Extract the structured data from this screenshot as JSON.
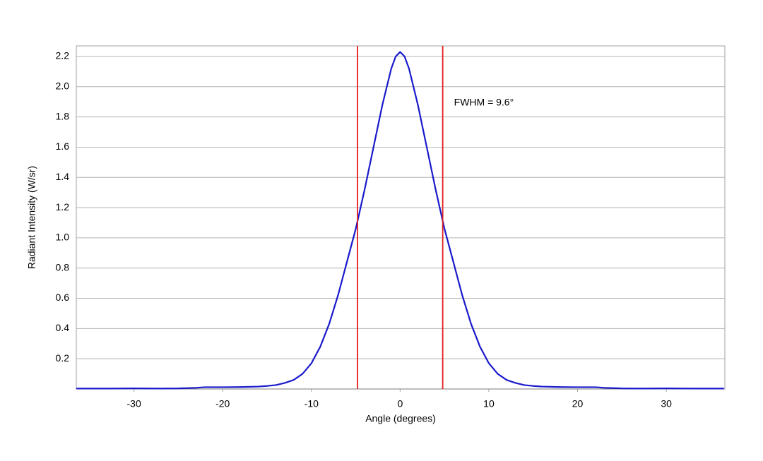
{
  "chart_data": {
    "type": "line",
    "xlabel": "Angle (degrees)",
    "ylabel": "Radiant Intensity (W/sr)",
    "x": [
      -36.5,
      -33,
      -30,
      -27,
      -25,
      -23,
      -22,
      -20,
      -18,
      -16,
      -15,
      -14,
      -13,
      -12,
      -11,
      -10,
      -9,
      -8,
      -7,
      -6,
      -5,
      -4,
      -3,
      -2,
      -1,
      -0.5,
      0,
      0.5,
      1,
      2,
      3,
      4,
      5,
      6,
      7,
      8,
      9,
      10,
      11,
      12,
      13,
      14,
      15,
      16,
      18,
      20,
      22,
      23,
      25,
      27,
      30,
      33,
      36.5
    ],
    "series": [
      {
        "name": "Radiant Intensity",
        "color": "#1a1acc",
        "values": [
          0.003,
          0.003,
          0.004,
          0.003,
          0.004,
          0.008,
          0.012,
          0.012,
          0.013,
          0.016,
          0.02,
          0.026,
          0.04,
          0.06,
          0.1,
          0.17,
          0.28,
          0.43,
          0.62,
          0.84,
          1.06,
          1.32,
          1.6,
          1.88,
          2.12,
          2.2,
          2.23,
          2.2,
          2.12,
          1.88,
          1.6,
          1.32,
          1.06,
          0.84,
          0.62,
          0.43,
          0.28,
          0.17,
          0.1,
          0.06,
          0.04,
          0.026,
          0.02,
          0.016,
          0.013,
          0.012,
          0.012,
          0.008,
          0.004,
          0.003,
          0.004,
          0.003,
          0.003
        ]
      }
    ],
    "vlines": {
      "color": "#e02020",
      "values": [
        -4.8,
        4.8
      ]
    },
    "annotation": "FWHM = 9.6°",
    "xlim": [
      -36.5,
      36.6
    ],
    "ylim": [
      0,
      2.27
    ],
    "xticks": [
      -30,
      -20,
      -10,
      0,
      10,
      20,
      30
    ],
    "yticks": [
      0.2,
      0.4,
      0.6,
      0.8,
      {
        "value": 1,
        "label": "1.0"
      },
      1.2,
      1.4,
      1.6,
      1.8,
      {
        "value": 2,
        "label": "2.0"
      },
      2.2
    ],
    "grid": true
  }
}
